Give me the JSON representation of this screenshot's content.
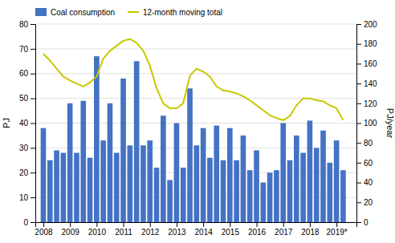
{
  "chart_data": {
    "type": "bar",
    "x": [
      2008.0,
      2008.25,
      2008.5,
      2008.75,
      2009.0,
      2009.25,
      2009.5,
      2009.75,
      2010.0,
      2010.25,
      2010.5,
      2010.75,
      2011.0,
      2011.25,
      2011.5,
      2011.75,
      2012.0,
      2012.25,
      2012.5,
      2012.75,
      2013.0,
      2013.25,
      2013.5,
      2013.75,
      2014.0,
      2014.25,
      2014.5,
      2014.75,
      2015.0,
      2015.25,
      2015.5,
      2015.75,
      2016.0,
      2016.25,
      2016.5,
      2016.75,
      2017.0,
      2017.25,
      2017.5,
      2017.75,
      2018.0,
      2018.25,
      2018.5,
      2018.75,
      2019.0,
      2019.25
    ],
    "series": [
      {
        "name": "Coal consumption",
        "type": "bar",
        "color": "#4472C4",
        "values": [
          38,
          25,
          29,
          28,
          48,
          28,
          49,
          26,
          67,
          33,
          48,
          28,
          58,
          31,
          65,
          31,
          33,
          22,
          43,
          17,
          40,
          22,
          54,
          31,
          38,
          26,
          39,
          25,
          38,
          25,
          35,
          21,
          29,
          16,
          20,
          21,
          40,
          25,
          35,
          28,
          41,
          30,
          37,
          24,
          33,
          21
        ]
      },
      {
        "name": "12-month moving total",
        "type": "line",
        "axis": "y2",
        "color": "#c8c800",
        "values": [
          170,
          163,
          155,
          147,
          143,
          140,
          137,
          141,
          147,
          165,
          173,
          178,
          183,
          185,
          181,
          173,
          158,
          135,
          120,
          115,
          115,
          120,
          148,
          155,
          152,
          147,
          137,
          133,
          132,
          130,
          127,
          123,
          118,
          113,
          108,
          105,
          103,
          107,
          118,
          125,
          125,
          123,
          122,
          118,
          115,
          103
        ]
      }
    ],
    "xlim": [
      2007.7,
      2019.75
    ],
    "xticks": [
      2008,
      2009,
      2010,
      2011,
      2012,
      2013,
      2014,
      2015,
      2016,
      2017,
      2018,
      {
        "value": 2019,
        "label": "2019*"
      }
    ],
    "ylim": [
      0,
      80
    ],
    "yticks": [
      0,
      10,
      20,
      30,
      40,
      50,
      60,
      70,
      80
    ],
    "y2lim": [
      0,
      200
    ],
    "y2ticks": [
      0,
      20,
      40,
      60,
      80,
      100,
      120,
      140,
      160,
      180,
      200
    ],
    "ylabel": "PJ",
    "y2label": "PJ/year",
    "grid": true,
    "legend": "upper left"
  }
}
